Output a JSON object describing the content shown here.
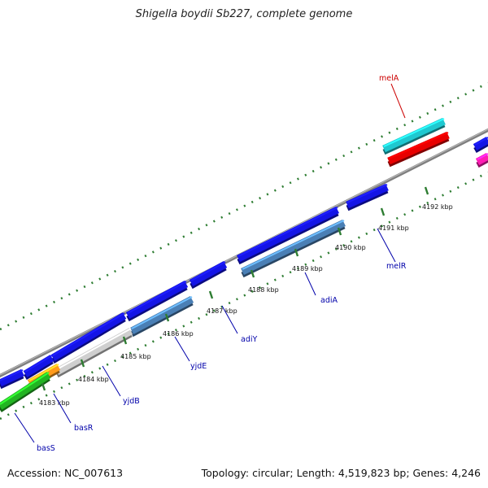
{
  "title": "Shigella boydii Sb227, complete genome",
  "footer": {
    "accession": "Accession: NC_007613",
    "summary": "Topology: circular; Length: 4,519,823 bp; Genes: 4,246"
  },
  "ticks": [
    {
      "label": "4183 kbp"
    },
    {
      "label": "4184 kbp"
    },
    {
      "label": "4185 kbp"
    },
    {
      "label": "4186 kbp"
    },
    {
      "label": "4187 kbp"
    },
    {
      "label": "4188 kbp"
    },
    {
      "label": "4189 kbp"
    },
    {
      "label": "4190 kbp"
    },
    {
      "label": "4191 kbp"
    },
    {
      "label": "4192 kbp"
    }
  ],
  "gene_labels": [
    {
      "name": "melA",
      "color": "#cc0000"
    },
    {
      "name": "melR",
      "color": "#0000aa"
    },
    {
      "name": "adiA",
      "color": "#0000aa"
    },
    {
      "name": "adiY",
      "color": "#0000aa"
    },
    {
      "name": "yjdE",
      "color": "#0000aa"
    },
    {
      "name": "yjdB",
      "color": "#0000aa"
    },
    {
      "name": "basR",
      "color": "#0000aa"
    },
    {
      "name": "basS",
      "color": "#0000aa"
    }
  ],
  "colors": {
    "backbone": "#8a8a8a",
    "tick": "#2e7d32",
    "forward_cds": "#1414e6",
    "reverse_cds": "#4a7fb5",
    "cyan_feature": "#1fc8d0",
    "red_feature": "#e80000",
    "magenta_feature": "#ff1cb4",
    "gray_feature": "#cfcfcf",
    "orange_feature": "#ff9a1a",
    "green_feature": "#22b422"
  }
}
